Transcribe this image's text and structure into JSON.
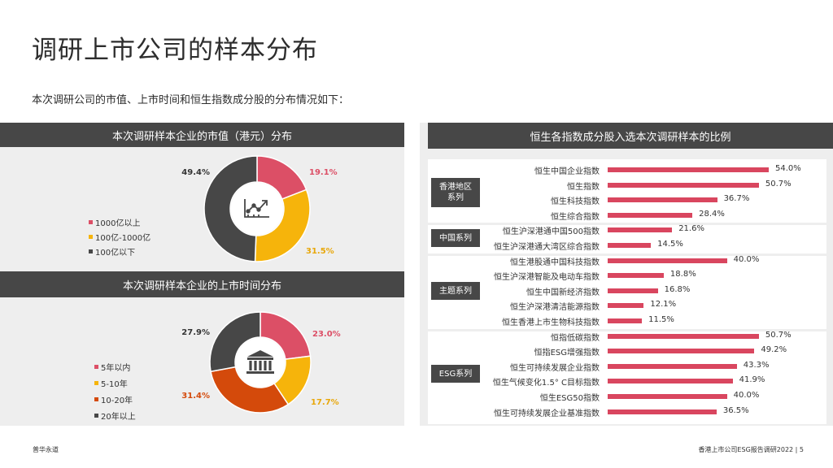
{
  "page": {
    "title": "调研上市公司的样本分布",
    "subtitle": "本次调研公司的市值、上市时间和恒生指数成分股的分布情况如下：",
    "footer_left": "普华永道",
    "footer_right": "香港上市公司ESG报告调研2022 |    5"
  },
  "panels": {
    "market_cap_header": "本次调研样本企业的市值（港元）分布",
    "listing_time_header": "本次调研样本企业的上市时间分布",
    "hsi_header": "恒生各指数成分股入选本次调研样本的比例"
  },
  "chart_data": [
    {
      "type": "pie",
      "title": "本次调研样本企业的市值（港元）分布",
      "icon": "trend-chart-icon",
      "slices": [
        {
          "label": "1000亿以上",
          "value": 19.1,
          "value_label": "19.1%",
          "color": "#dc4f66"
        },
        {
          "label": "100亿-1000亿",
          "value": 31.5,
          "value_label": "31.5%",
          "color": "#f6b40b"
        },
        {
          "label": "100亿以下",
          "value": 49.4,
          "value_label": "49.4%",
          "color": "#474747"
        }
      ]
    },
    {
      "type": "pie",
      "title": "本次调研样本企业的上市时间分布",
      "icon": "bank-building-icon",
      "slices": [
        {
          "label": "5年以内",
          "value": 23.0,
          "value_label": "23.0%",
          "color": "#dc4f66"
        },
        {
          "label": "5-10年",
          "value": 17.7,
          "value_label": "17.7%",
          "color": "#f6b40b"
        },
        {
          "label": "10-20年",
          "value": 31.4,
          "value_label": "31.4%",
          "color": "#d44a0b"
        },
        {
          "label": "20年以上",
          "value": 27.9,
          "value_label": "27.9%",
          "color": "#474747"
        }
      ]
    },
    {
      "type": "bar",
      "title": "恒生各指数成分股入选本次调研样本的比例",
      "orientation": "horizontal",
      "xlim": [
        0,
        60
      ],
      "color": "#d9465f",
      "groups": [
        {
          "name": "香港地区\n系列",
          "items": [
            {
              "label": "恒生中国企业指数",
              "value": 54.0,
              "value_label": "54.0%"
            },
            {
              "label": "恒生指数",
              "value": 50.7,
              "value_label": "50.7%"
            },
            {
              "label": "恒生科技指数",
              "value": 36.7,
              "value_label": "36.7%"
            },
            {
              "label": "恒生综合指数",
              "value": 28.4,
              "value_label": "28.4%"
            }
          ]
        },
        {
          "name": "中国系列",
          "items": [
            {
              "label": "恒生沪深港通中国500指数",
              "value": 21.6,
              "value_label": "21.6%"
            },
            {
              "label": "恒生沪深港通大湾区综合指数",
              "value": 14.5,
              "value_label": "14.5%"
            }
          ]
        },
        {
          "name": "主题系列",
          "items": [
            {
              "label": "恒生港股通中国科技指数",
              "value": 40.0,
              "value_label": "40.0%"
            },
            {
              "label": "恒生沪深港智能及电动车指数",
              "value": 18.8,
              "value_label": "18.8%"
            },
            {
              "label": "恒生中国新经济指数",
              "value": 16.8,
              "value_label": "16.8%"
            },
            {
              "label": "恒生沪深港清洁能源指数",
              "value": 12.1,
              "value_label": "12.1%"
            },
            {
              "label": "恒生香港上市生物科技指数",
              "value": 11.5,
              "value_label": "11.5%"
            }
          ]
        },
        {
          "name": "ESG系列",
          "items": [
            {
              "label": "恒指低碳指数",
              "value": 50.7,
              "value_label": "50.7%"
            },
            {
              "label": "恒指ESG增强指数",
              "value": 49.2,
              "value_label": "49.2%"
            },
            {
              "label": "恒生可持续发展企业指数",
              "value": 43.3,
              "value_label": "43.3%"
            },
            {
              "label": "恒生气候变化1.5° C目标指数",
              "value": 41.9,
              "value_label": "41.9%"
            },
            {
              "label": "恒生ESG50指数",
              "value": 40.0,
              "value_label": "40.0%"
            },
            {
              "label": "恒生可持续发展企业基准指数",
              "value": 36.5,
              "value_label": "36.5%"
            }
          ]
        }
      ]
    }
  ]
}
